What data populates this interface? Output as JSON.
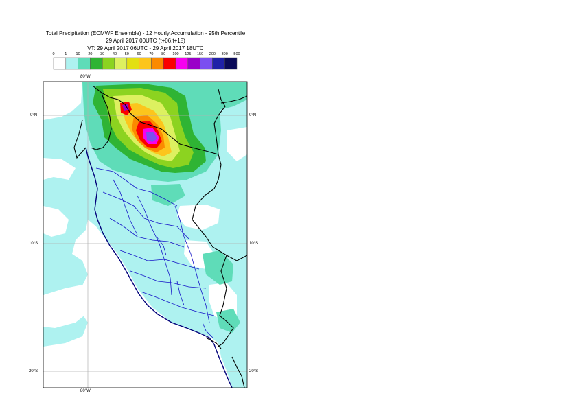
{
  "title": {
    "line1": "Total Precipitation (ECMWF Ensemble) - 12 Hourly Accumulation - 95th Percentile",
    "line2": "29 April 2017 00UTC (t+06,t+18)",
    "line3": "VT: 29 April 2017 06UTC - 29 April 2017 18UTC"
  },
  "legend": {
    "ticks": [
      "0",
      "1",
      "10",
      "20",
      "30",
      "40",
      "50",
      "60",
      "70",
      "80",
      "100",
      "125",
      "150",
      "200",
      "300",
      "500"
    ],
    "colors": [
      "#ffffff",
      "#aef2f0",
      "#5fdcb8",
      "#2fb434",
      "#8cd320",
      "#ddf060",
      "#e3df12",
      "#fcc51c",
      "#fb8a00",
      "#fa0000",
      "#f601f0",
      "#9a00c8",
      "#7b4ff0",
      "#2022a8",
      "#0a0a58"
    ]
  },
  "axes": {
    "lon_top": "80°W",
    "lon_bottom": "80°W",
    "lat_labels": [
      "0°N",
      "10°S",
      "20°S"
    ]
  },
  "map": {
    "region": "Peru",
    "colors": {
      "ocean_light": "#aef2f0",
      "moist": "#5fdcb8",
      "dry": "#ffffff",
      "border": "#000000",
      "coast": "#00007a",
      "admin": "#1515c8"
    }
  }
}
